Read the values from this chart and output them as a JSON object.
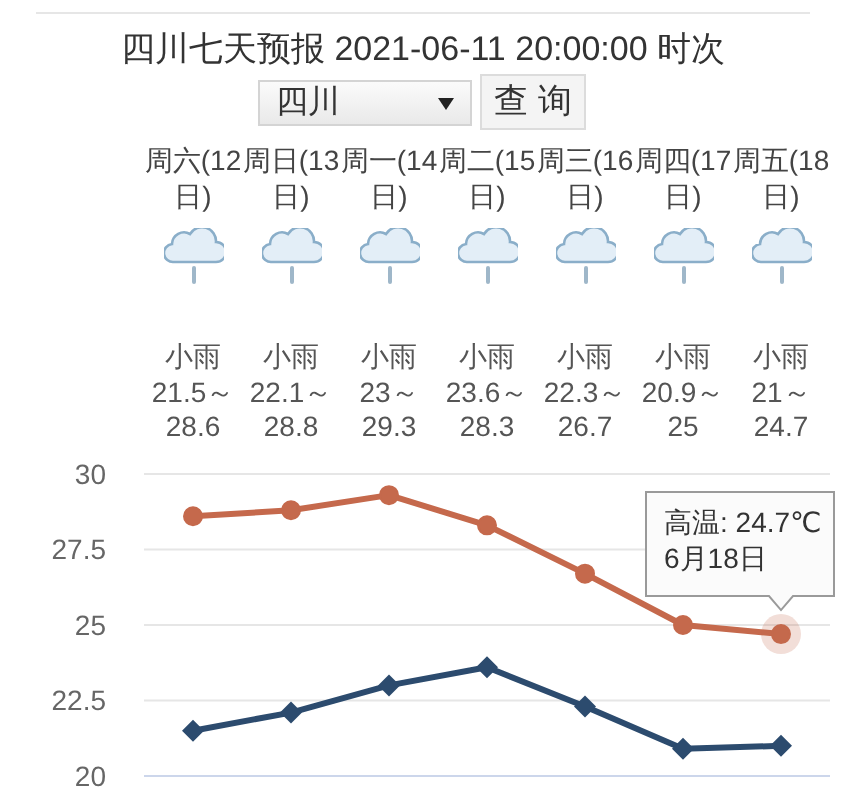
{
  "chart_data": {
    "type": "line",
    "title": "四川七天预报 2021-06-11 20:00:00 时次",
    "categories": [
      null,
      null,
      null,
      null,
      null,
      null,
      null
    ],
    "series": [
      {
        "color": "#2c4b6e",
        "marker": "diamond",
        "values": [
          21.5,
          22.1,
          23,
          23.6,
          22.3,
          20.9,
          21
        ],
        "value_labels": [
          "21.5～",
          "22.1～",
          "23～",
          "23.6～",
          "22.3～",
          "20.9～",
          "21～"
        ]
      },
      {
        "color": "#c5694c",
        "marker": "circle",
        "values": [
          28.6,
          28.8,
          29.3,
          28.3,
          26.7,
          25,
          24.7
        ],
        "value_labels": [
          "28.6",
          "28.8",
          "29.3",
          "28.3",
          "26.7",
          "25",
          "24.7"
        ]
      }
    ],
    "ylim": [
      20,
      30
    ],
    "yticks": [
      20,
      22.5,
      25,
      27.5,
      30
    ],
    "grid": "y",
    "annotations": [
      "四川",
      "查询",
      "周六(12日)",
      "周日(13日)",
      "周一(14日)",
      "周二(15日)",
      "周三(16日)",
      "周四(17日)",
      "周五(18日)",
      "小雨",
      "小雨",
      "小雨",
      "小雨",
      "小雨",
      "小雨",
      "小雨",
      {
        "text": "高温: 24.7℃\n6月18日",
        "y": 24.7
      }
    ]
  }
}
